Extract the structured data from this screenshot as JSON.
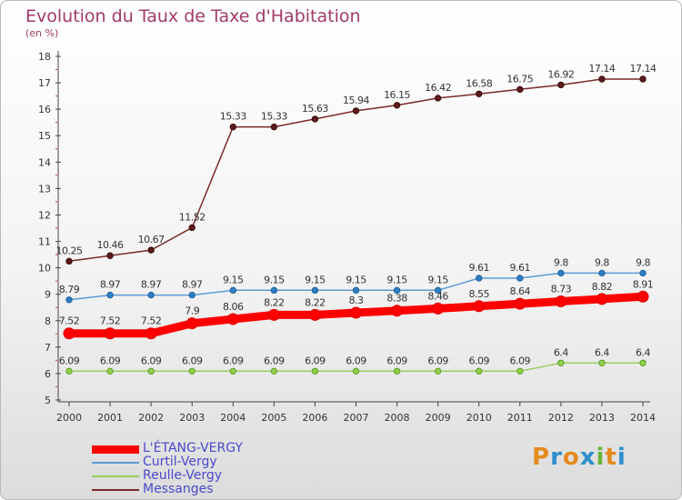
{
  "title": "Evolution du Taux de Taxe d'Habitation",
  "unit": "(en %)",
  "logo": [
    "P",
    "r",
    "o",
    "x",
    "i",
    "t",
    "i"
  ],
  "logo_colors": [
    "#e58a1f",
    "#2d8fcc",
    "#e58a1f",
    "#2d8fcc",
    "#6ab23a",
    "#e58a1f",
    "#2d8fcc"
  ],
  "chart_data": {
    "type": "line",
    "x": [
      2000,
      2001,
      2002,
      2003,
      2004,
      2005,
      2006,
      2007,
      2008,
      2009,
      2010,
      2011,
      2012,
      2013,
      2014
    ],
    "ylim": [
      5,
      18
    ],
    "yticks": [
      5,
      6,
      7,
      8,
      9,
      10,
      11,
      12,
      13,
      14,
      15,
      16,
      17,
      18
    ],
    "grid": false,
    "legend": "bottom-left",
    "series": [
      {
        "name": "L'ÉTANG-VERGY",
        "color": "#ff0000",
        "values": [
          7.52,
          7.52,
          7.52,
          7.9,
          8.06,
          8.22,
          8.22,
          8.3,
          8.38,
          8.46,
          8.55,
          8.64,
          8.73,
          8.82,
          8.91
        ]
      },
      {
        "name": "Curtil-Vergy",
        "color": "#5b9bd5",
        "values": [
          8.79,
          8.97,
          8.97,
          8.97,
          9.15,
          9.15,
          9.15,
          9.15,
          9.15,
          9.15,
          9.61,
          9.61,
          9.8,
          9.8,
          9.8
        ]
      },
      {
        "name": "Reulle-Vergy",
        "color": "#9acd5a",
        "values": [
          6.09,
          6.09,
          6.09,
          6.09,
          6.09,
          6.09,
          6.09,
          6.09,
          6.09,
          6.09,
          6.09,
          6.09,
          6.4,
          6.4,
          6.4
        ]
      },
      {
        "name": "Messanges",
        "color": "#7b2a2a",
        "values": [
          10.25,
          10.46,
          10.67,
          11.52,
          15.33,
          15.33,
          15.63,
          15.94,
          16.15,
          16.42,
          16.58,
          16.75,
          16.92,
          17.14,
          17.14
        ]
      }
    ]
  }
}
